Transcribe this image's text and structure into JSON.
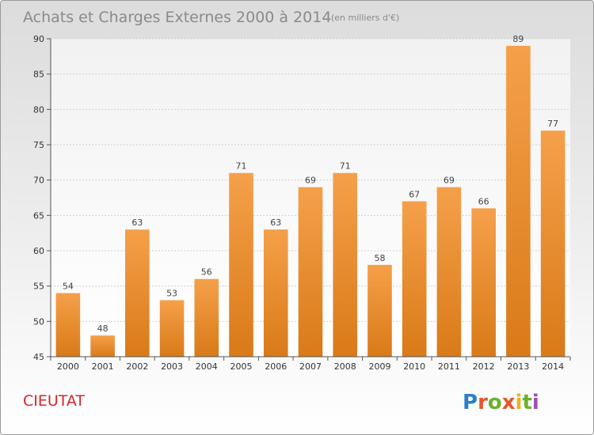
{
  "chart_data": {
    "type": "bar",
    "title": "Achats et Charges Externes 2000 à 2014",
    "subtitle": "(en milliers d'€)",
    "categories": [
      "2000",
      "2001",
      "2002",
      "2003",
      "2004",
      "2005",
      "2006",
      "2007",
      "2008",
      "2009",
      "2010",
      "2011",
      "2012",
      "2013",
      "2014"
    ],
    "values": [
      54,
      48,
      63,
      53,
      56,
      71,
      63,
      69,
      71,
      58,
      67,
      69,
      66,
      89,
      77
    ],
    "ylim": [
      45,
      90
    ],
    "yticks": [
      45,
      50,
      55,
      60,
      65,
      70,
      75,
      80,
      85,
      90
    ],
    "grid": true,
    "bar_color": "#f0902a"
  },
  "commune": "CIEUTAT",
  "brand": {
    "letters": [
      "P",
      "r",
      "o",
      "x",
      "i",
      "t",
      "i"
    ],
    "colors": [
      "#2b7fc9",
      "#e8542a",
      "#6bb12f",
      "#e8542a",
      "#f2b01e",
      "#6bb12f",
      "#9c4fb0"
    ]
  }
}
